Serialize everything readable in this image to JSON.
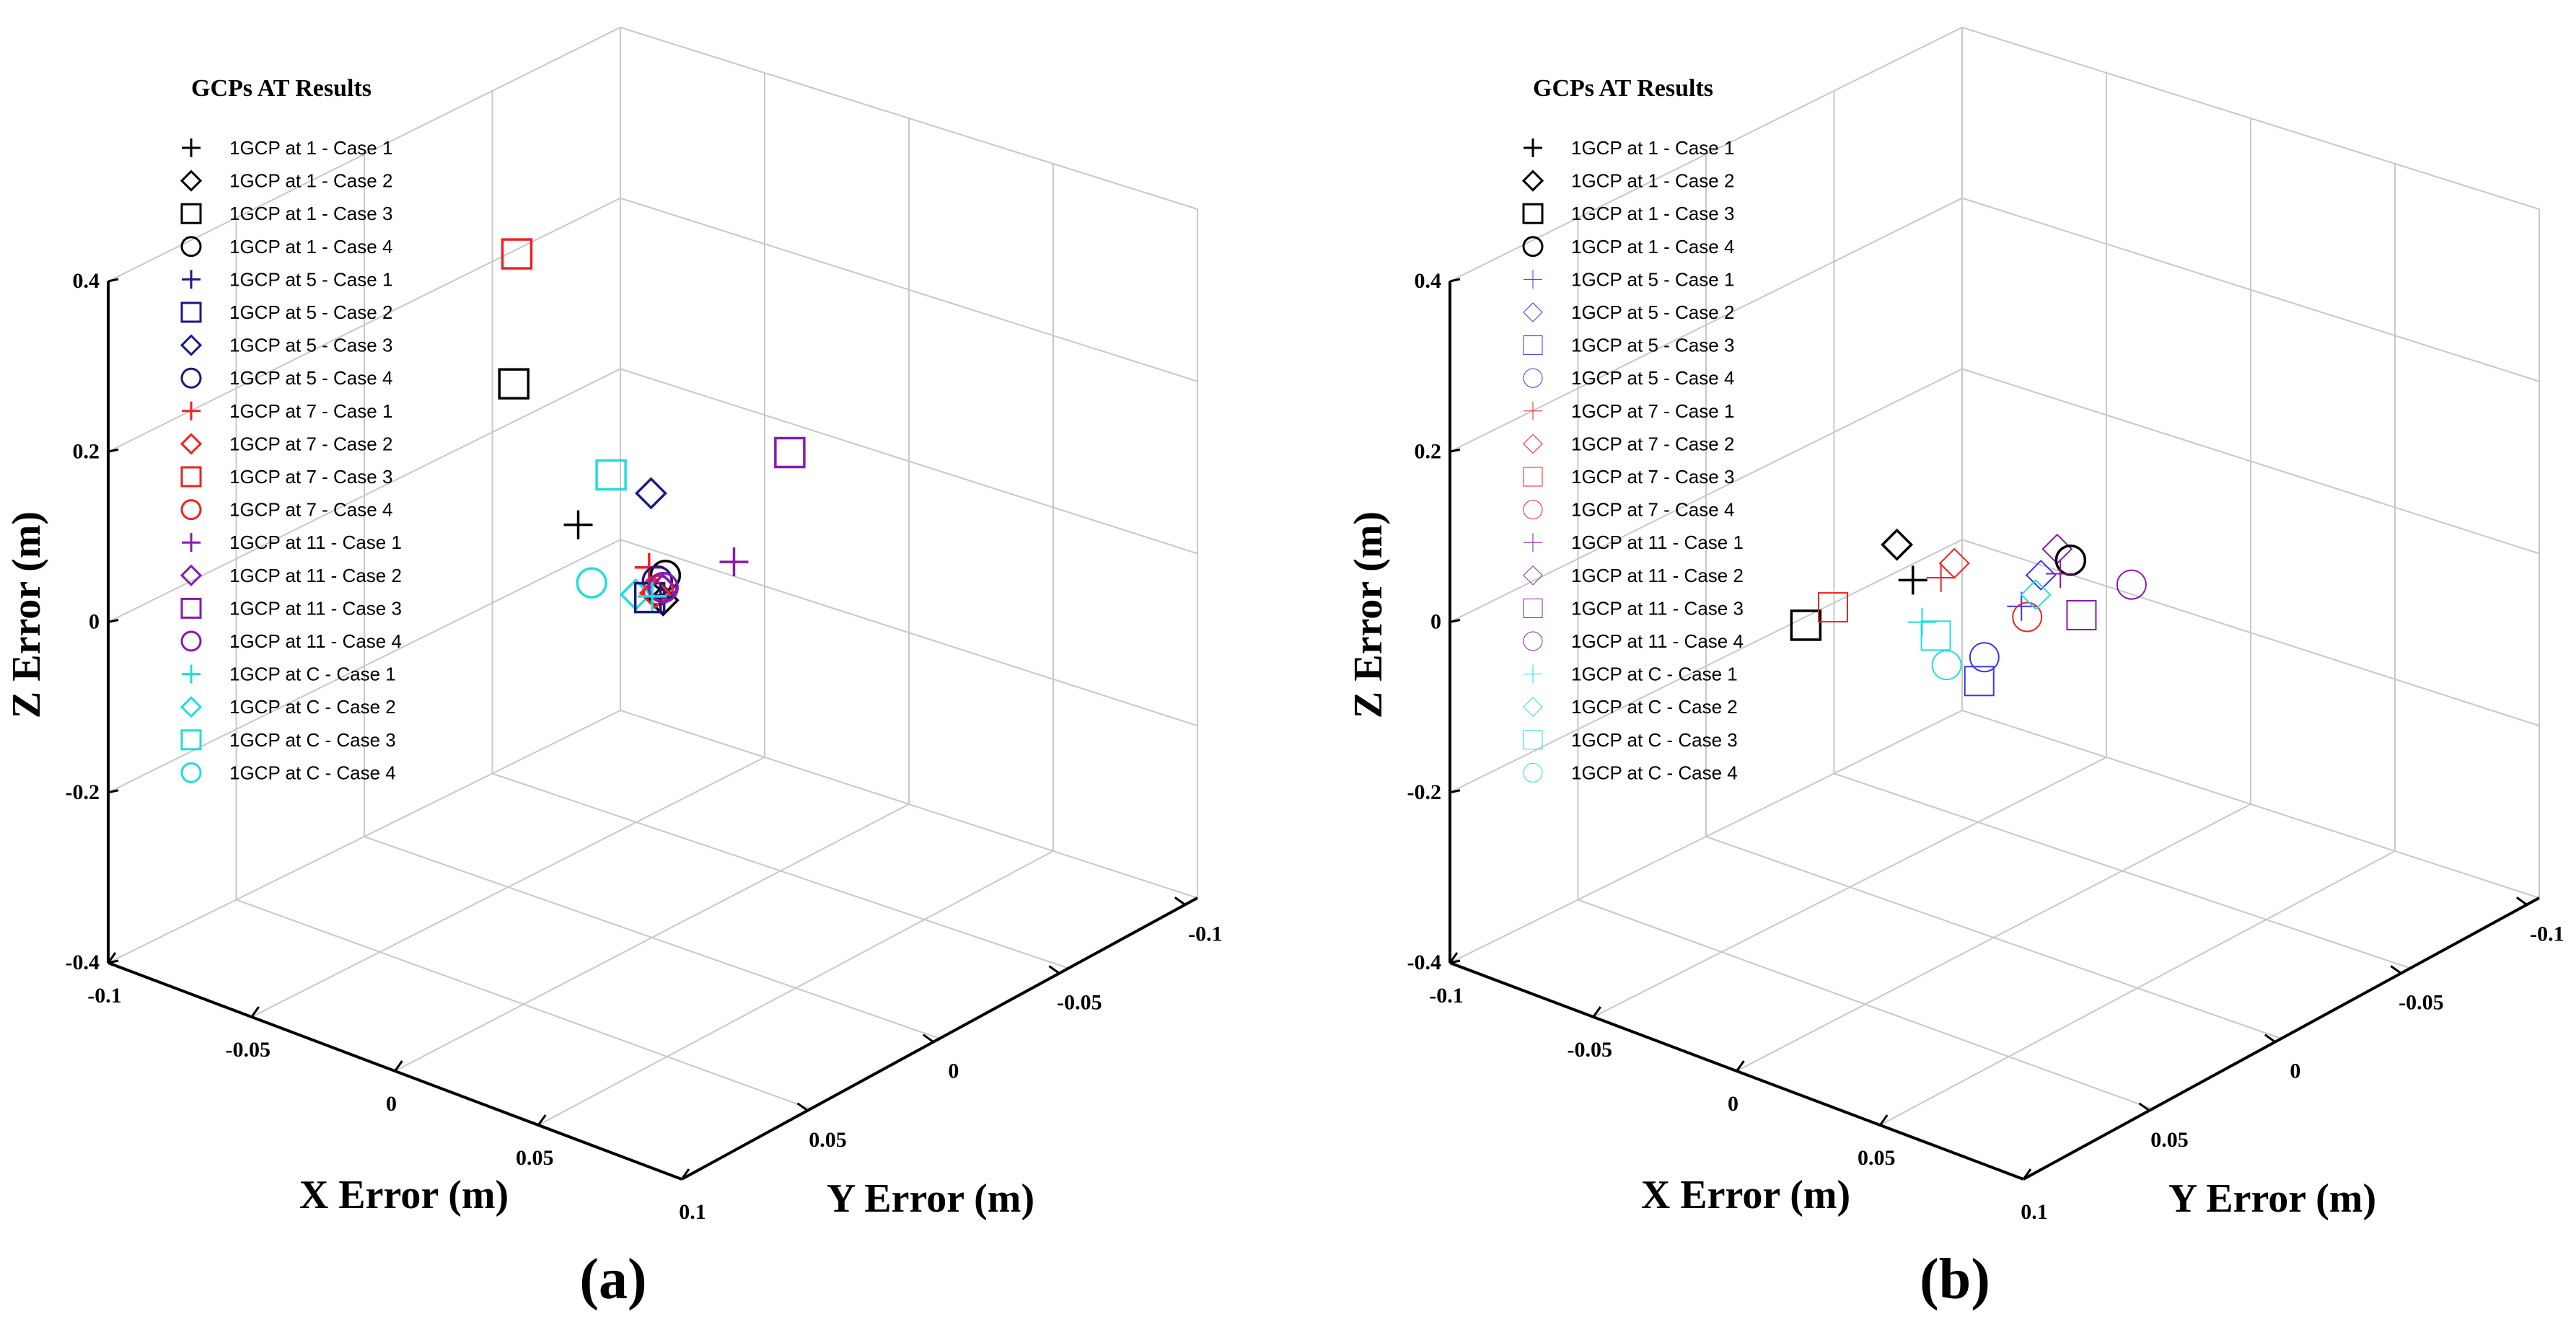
{
  "legend_entries": [
    {
      "label": "1GCP at 1 - Case 1",
      "marker": "plus",
      "group": "1"
    },
    {
      "label": "1GCP at 1 - Case 2",
      "marker": "diamond",
      "group": "1"
    },
    {
      "label": "1GCP at 1 - Case 3",
      "marker": "square",
      "group": "1"
    },
    {
      "label": "1GCP at 1 - Case 4",
      "marker": "circle",
      "group": "1"
    },
    {
      "label": "1GCP at 5 - Case 1",
      "marker": "plus",
      "group": "5"
    },
    {
      "label": "1GCP at 5 - Case 2",
      "marker": "square",
      "group": "5",
      "marker_b": "diamond"
    },
    {
      "label": "1GCP at 5 - Case 3",
      "marker": "diamond",
      "group": "5",
      "marker_b": "square"
    },
    {
      "label": "1GCP at 5 - Case 4",
      "marker": "circle",
      "group": "5"
    },
    {
      "label": "1GCP at 7 - Case 1",
      "marker": "plus",
      "group": "7"
    },
    {
      "label": "1GCP at 7 - Case 2",
      "marker": "diamond",
      "group": "7"
    },
    {
      "label": "1GCP at 7 - Case 3",
      "marker": "square",
      "group": "7"
    },
    {
      "label": "1GCP at 7 - Case 4",
      "marker": "circle",
      "group": "7"
    },
    {
      "label": "1GCP at 11 - Case 1",
      "marker": "plus",
      "group": "11"
    },
    {
      "label": "1GCP at 11 - Case 2",
      "marker": "diamond",
      "group": "11"
    },
    {
      "label": "1GCP at 11 - Case 3",
      "marker": "square",
      "group": "11"
    },
    {
      "label": "1GCP at 11 - Case 4",
      "marker": "circle",
      "group": "11"
    },
    {
      "label": "1GCP at C - Case 1",
      "marker": "plus",
      "group": "C"
    },
    {
      "label": "1GCP at C - Case 2",
      "marker": "diamond",
      "group": "C"
    },
    {
      "label": "1GCP at C - Case 3",
      "marker": "square",
      "group": "C"
    },
    {
      "label": "1GCP at C - Case 4",
      "marker": "circle",
      "group": "C"
    }
  ],
  "chart_data": [
    {
      "type": "scatter",
      "panel_label": "(a)",
      "title": "GCPs AT Results",
      "xlabel": "X Error (m)",
      "ylabel": "Y Error (m)",
      "zlabel": "Z Error (m)",
      "xlim": [
        -0.1,
        0.1
      ],
      "ylim": [
        -0.1,
        0.1
      ],
      "zlim": [
        -0.4,
        0.4
      ],
      "x_ticks": [
        "-0.1",
        "-0.05",
        "0",
        "0.05",
        "0.1"
      ],
      "y_ticks": [
        "-0.1",
        "-0.05",
        "0",
        "0.05"
      ],
      "z_ticks": [
        "0.4",
        "0.2",
        "0",
        "-0.2",
        "-0.4"
      ],
      "colors": {
        "1": "#000000",
        "5": "#1a1a80",
        "7": "#ee2222",
        "11": "#8a1aaa",
        "C": "#22dddd"
      },
      "points": [
        {
          "series": "1GCP at 7 - Case 3",
          "x": -0.02,
          "y": 0.03,
          "z": 0.43
        },
        {
          "series": "1GCP at 1 - Case 3",
          "x": -0.03,
          "y": 0.02,
          "z": 0.25
        },
        {
          "series": "1GCP at 11 - Case 3",
          "x": 0.035,
          "y": -0.015,
          "z": 0.2
        },
        {
          "series": "1GCP at C - Case 3",
          "x": -0.005,
          "y": 0.01,
          "z": 0.16
        },
        {
          "series": "1GCP at 5 - Case 3",
          "x": 0.0,
          "y": 0.0,
          "z": 0.13
        },
        {
          "series": "1GCP at 1 - Case 1",
          "x": -0.012,
          "y": 0.015,
          "z": 0.1
        },
        {
          "series": "1GCP at 11 - Case 1",
          "x": 0.02,
          "y": -0.01,
          "z": 0.06
        },
        {
          "series": "1GCP at 7 - Case 1",
          "x": 0.002,
          "y": 0.003,
          "z": 0.05
        },
        {
          "series": "1GCP at C - Case 4",
          "x": -0.01,
          "y": 0.012,
          "z": 0.03
        },
        {
          "series": "1GCP at 1 - Case 4",
          "x": 0.005,
          "y": 0.0,
          "z": 0.04
        },
        {
          "series": "1GCP at 5 - Case 4",
          "x": 0.004,
          "y": 0.002,
          "z": 0.035
        },
        {
          "series": "1GCP at 7 - Case 4",
          "x": 0.006,
          "y": 0.004,
          "z": 0.03
        },
        {
          "series": "1GCP at C - Case 2",
          "x": 0.0,
          "y": 0.006,
          "z": 0.02
        },
        {
          "series": "1GCP at 1 - Case 2",
          "x": 0.006,
          "y": 0.002,
          "z": 0.015
        },
        {
          "series": "1GCP at 5 - Case 2",
          "x": 0.004,
          "y": 0.005,
          "z": 0.02
        },
        {
          "series": "1GCP at 7 - Case 2",
          "x": 0.005,
          "y": 0.004,
          "z": 0.025
        },
        {
          "series": "1GCP at 11 - Case 2",
          "x": 0.005,
          "y": 0.001,
          "z": 0.025
        },
        {
          "series": "1GCP at 5 - Case 1",
          "x": 0.006,
          "y": 0.003,
          "z": 0.02
        },
        {
          "series": "1GCP at 11 - Case 4",
          "x": 0.006,
          "y": 0.002,
          "z": 0.03
        },
        {
          "series": "1GCP at C - Case 1",
          "x": 0.004,
          "y": 0.004,
          "z": 0.02
        }
      ]
    },
    {
      "type": "scatter",
      "panel_label": "(b)",
      "title": "GCPs AT Results",
      "xlabel": "X Error (m)",
      "ylabel": "Y Error (m)",
      "zlabel": "Z Error (m)",
      "xlim": [
        -0.1,
        0.1
      ],
      "ylim": [
        -0.1,
        0.1
      ],
      "zlim": [
        -0.4,
        0.4
      ],
      "x_ticks": [
        "-0.1",
        "-0.05",
        "0",
        "0.05",
        "0.1"
      ],
      "y_ticks": [
        "-0.1",
        "-0.05",
        "0",
        "0.05"
      ],
      "z_ticks": [
        "0.4",
        "0.2",
        "0",
        "-0.2",
        "-0.4"
      ],
      "colors": {
        "1": "#000000",
        "5": "#3838e8",
        "7": "#ee2222",
        "11": "#8a1aaa",
        "C": "#22dddd"
      },
      "points": [
        {
          "series": "1GCP at 1 - Case 3",
          "x": -0.025,
          "y": 0.045,
          "z": 0.01
        },
        {
          "series": "1GCP at 7 - Case 3",
          "x": -0.02,
          "y": 0.04,
          "z": 0.03
        },
        {
          "series": "1GCP at 1 - Case 2",
          "x": -0.012,
          "y": 0.024,
          "z": 0.09
        },
        {
          "series": "1GCP at 1 - Case 1",
          "x": -0.01,
          "y": 0.02,
          "z": 0.045
        },
        {
          "series": "1GCP at 7 - Case 1",
          "x": -0.002,
          "y": 0.018,
          "z": 0.055
        },
        {
          "series": "1GCP at 7 - Case 2",
          "x": 0.0,
          "y": 0.015,
          "z": 0.07
        },
        {
          "series": "1GCP at C - Case 1",
          "x": -0.005,
          "y": 0.022,
          "z": 0.005
        },
        {
          "series": "1GCP at C - Case 3",
          "x": -0.002,
          "y": 0.02,
          "z": -0.01
        },
        {
          "series": "1GCP at C - Case 4",
          "x": 0.0,
          "y": 0.018,
          "z": -0.045
        },
        {
          "series": "1GCP at 5 - Case 3",
          "x": 0.006,
          "y": 0.012,
          "z": -0.065
        },
        {
          "series": "1GCP at 5 - Case 4",
          "x": 0.006,
          "y": 0.01,
          "z": -0.04
        },
        {
          "series": "1GCP at 5 - Case 1",
          "x": 0.01,
          "y": 0.0,
          "z": 0.01
        },
        {
          "series": "1GCP at 7 - Case 4",
          "x": 0.012,
          "y": 0.0,
          "z": 0.0
        },
        {
          "series": "1GCP at 5 - Case 2",
          "x": 0.015,
          "y": -0.002,
          "z": 0.05
        },
        {
          "series": "1GCP at 11 - Case 2",
          "x": 0.018,
          "y": -0.005,
          "z": 0.08
        },
        {
          "series": "1GCP at 1 - Case 4",
          "x": 0.02,
          "y": -0.008,
          "z": 0.065
        },
        {
          "series": "1GCP at 11 - Case 1",
          "x": 0.02,
          "y": -0.004,
          "z": 0.055
        },
        {
          "series": "1GCP at 11 - Case 3",
          "x": 0.022,
          "y": -0.01,
          "z": 0.0
        },
        {
          "series": "1GCP at C - Case 2",
          "x": 0.015,
          "y": 0.0,
          "z": 0.03
        },
        {
          "series": "1GCP at 11 - Case 4",
          "x": 0.035,
          "y": -0.015,
          "z": 0.045
        }
      ]
    }
  ]
}
